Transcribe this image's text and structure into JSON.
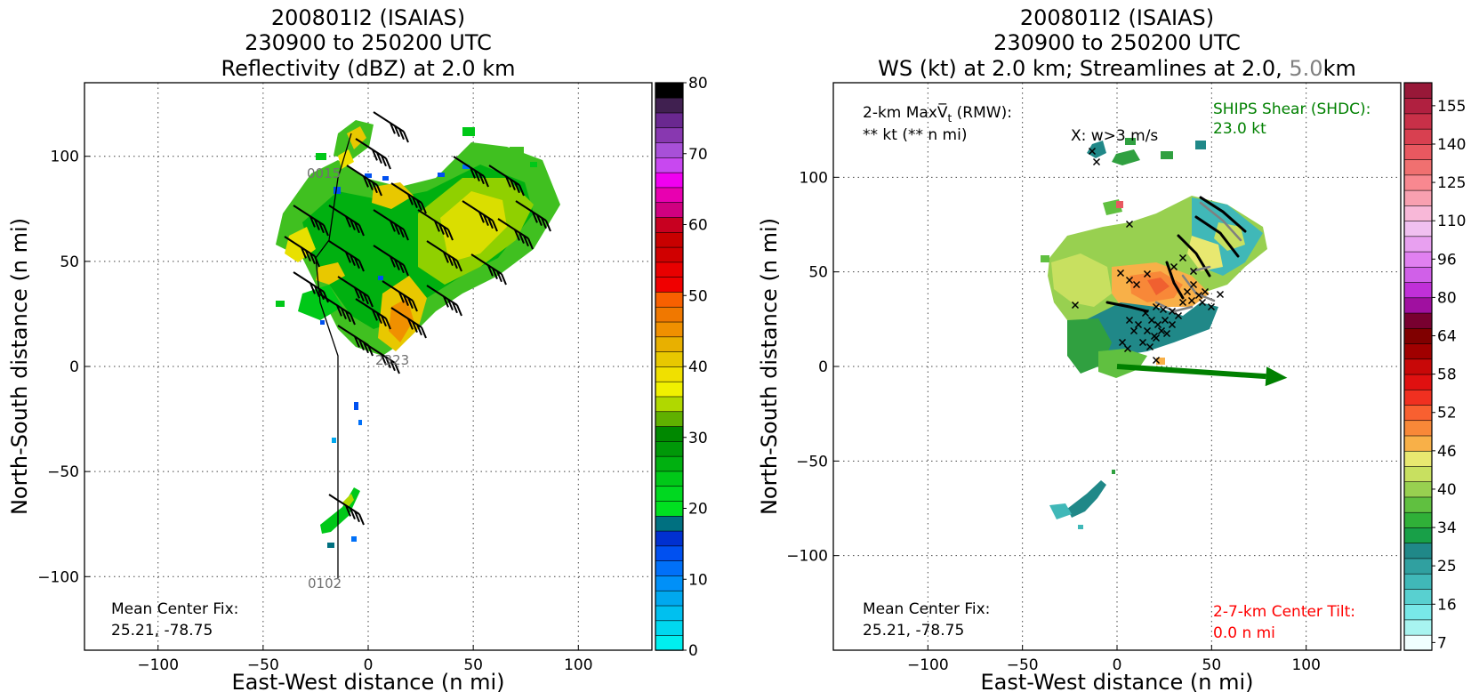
{
  "chart_data": [
    {
      "type": "heatmap",
      "title_lines": [
        "200801I2 (ISAIAS)",
        "230900 to 250200 UTC",
        "Reflectivity (dBZ) at 2.0 km"
      ],
      "xlabel": "East-West distance (n mi)",
      "ylabel": "North-South distance (n mi)",
      "xlim": [
        -135,
        135
      ],
      "ylim": [
        -135,
        135
      ],
      "xticks": [
        -100,
        -50,
        0,
        50,
        100
      ],
      "yticks": [
        -100,
        -50,
        0,
        50,
        100
      ],
      "grid": true,
      "colorbar": {
        "min": 0,
        "max": 80,
        "ticks": [
          0,
          10,
          20,
          30,
          40,
          50,
          60,
          70,
          80
        ],
        "colors": [
          "#00efef",
          "#00d8ef",
          "#00c0ef",
          "#00a8ef",
          "#0090f8",
          "#0070f8",
          "#0050f0",
          "#0030d0",
          "#007080",
          "#00e020",
          "#00d820",
          "#00c818",
          "#00b010",
          "#009808",
          "#008800",
          "#60b000",
          "#b0d800",
          "#f0f000",
          "#f0e000",
          "#e8c800",
          "#e8b000",
          "#f09000",
          "#f07800",
          "#f86000",
          "#f00000",
          "#e80000",
          "#d00000",
          "#c80000",
          "#c80020",
          "#d00080",
          "#e800b0",
          "#f000f0",
          "#c848f0",
          "#a850d8",
          "#8838b0",
          "#6a2890",
          "#402050",
          "#000000"
        ]
      },
      "track_labels": [
        "0015",
        "2323",
        "0102"
      ],
      "mean_center_fix": {
        "label": "Mean Center Fix:",
        "value": "25.21, -78.75"
      }
    },
    {
      "type": "heatmap",
      "title_lines": [
        "200801I2 (ISAIAS)",
        "230900 to 250200 UTC"
      ],
      "title_line3": {
        "pre": "WS (kt) at 2.0 km; Streamlines at 2.0, ",
        "gray": "5.0",
        "post": "km"
      },
      "xlabel": "East-West distance (n mi)",
      "ylabel": "North-South distance (n mi)",
      "xlim": [
        -150,
        150
      ],
      "ylim": [
        -150,
        150
      ],
      "xticks": [
        -100,
        -50,
        0,
        50,
        100
      ],
      "yticks": [
        -100,
        -50,
        0,
        50,
        100
      ],
      "grid": true,
      "max_vt": {
        "line1": "2-km MaxV̅",
        "sub": "t",
        "line1_post": " (RMW):",
        "line2": "** kt (** n mi)"
      },
      "w_marker_label": "X: w>3 m/s",
      "ships_shear": {
        "label": "SHIPS Shear (SHDC):",
        "value": "23.0 kt",
        "color": "#008000"
      },
      "shear_vector": {
        "dx": 90,
        "dy": -6
      },
      "center_tilt": {
        "label": "2-7-km Center Tilt:",
        "value": "0.0 n mi",
        "color": "#ff0000"
      },
      "mean_center_fix": {
        "label": "Mean Center Fix:",
        "value": "25.21, -78.75"
      },
      "colorbar": {
        "ticks": [
          "7",
          "16",
          "25",
          "34",
          "40",
          "46",
          "52",
          "58",
          "64",
          "80",
          "96",
          "110",
          "125",
          "140",
          "155"
        ],
        "colors": [
          "#f0ffff",
          "#a8f4f0",
          "#78e8e8",
          "#58d0d0",
          "#40b8b8",
          "#30a0a0",
          "#208888",
          "#18a048",
          "#30b038",
          "#60c040",
          "#98d050",
          "#c8e060",
          "#e8e870",
          "#f8b048",
          "#f88838",
          "#f86030",
          "#f03020",
          "#e01010",
          "#c80808",
          "#a00000",
          "#800000",
          "#780030",
          "#a010a0",
          "#c030d8",
          "#d060e8",
          "#e080f0",
          "#e8a0f0",
          "#f0c0f0",
          "#f8b8d8",
          "#f8a0b0",
          "#f88890",
          "#f07070",
          "#e85860",
          "#d84050",
          "#c83048",
          "#b02040",
          "#981838"
        ]
      }
    }
  ]
}
